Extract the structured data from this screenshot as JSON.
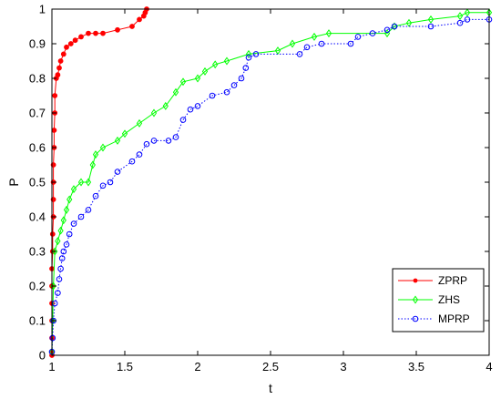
{
  "chart_data": {
    "type": "line",
    "xlabel": "t",
    "ylabel": "P",
    "xlim": [
      1,
      4
    ],
    "ylim": [
      0,
      1
    ],
    "x_ticks": [
      "1",
      "1.5",
      "2",
      "2.5",
      "3",
      "3.5",
      "4"
    ],
    "y_ticks": [
      "0",
      "0.1",
      "0.2",
      "0.3",
      "0.4",
      "0.5",
      "0.6",
      "0.7",
      "0.8",
      "0.9",
      "1"
    ],
    "grid": false,
    "legend_position": "bottom-right",
    "series": [
      {
        "name": "ZPRP",
        "color": "#ff0000",
        "marker": "dot",
        "line_style": "solid",
        "points": [
          [
            1.0,
            0.0
          ],
          [
            1.0,
            0.01
          ],
          [
            1.0,
            0.05
          ],
          [
            1.0,
            0.1
          ],
          [
            1.0,
            0.15
          ],
          [
            1.0,
            0.2
          ],
          [
            1.0,
            0.25
          ],
          [
            1.005,
            0.3
          ],
          [
            1.005,
            0.35
          ],
          [
            1.01,
            0.4
          ],
          [
            1.01,
            0.45
          ],
          [
            1.01,
            0.5
          ],
          [
            1.01,
            0.55
          ],
          [
            1.015,
            0.6
          ],
          [
            1.015,
            0.65
          ],
          [
            1.02,
            0.7
          ],
          [
            1.02,
            0.75
          ],
          [
            1.03,
            0.8
          ],
          [
            1.04,
            0.81
          ],
          [
            1.05,
            0.83
          ],
          [
            1.06,
            0.85
          ],
          [
            1.08,
            0.87
          ],
          [
            1.1,
            0.89
          ],
          [
            1.13,
            0.9
          ],
          [
            1.16,
            0.91
          ],
          [
            1.2,
            0.92
          ],
          [
            1.25,
            0.93
          ],
          [
            1.3,
            0.93
          ],
          [
            1.35,
            0.93
          ],
          [
            1.45,
            0.94
          ],
          [
            1.55,
            0.95
          ],
          [
            1.6,
            0.97
          ],
          [
            1.63,
            0.98
          ],
          [
            1.64,
            0.99
          ],
          [
            1.65,
            1.0
          ]
        ]
      },
      {
        "name": "ZHS",
        "color": "#00ff00",
        "marker": "diamond",
        "line_style": "solid",
        "points": [
          [
            1.0,
            0.01
          ],
          [
            1.005,
            0.1
          ],
          [
            1.01,
            0.2
          ],
          [
            1.02,
            0.3
          ],
          [
            1.04,
            0.33
          ],
          [
            1.06,
            0.36
          ],
          [
            1.08,
            0.39
          ],
          [
            1.1,
            0.42
          ],
          [
            1.12,
            0.45
          ],
          [
            1.15,
            0.48
          ],
          [
            1.2,
            0.5
          ],
          [
            1.25,
            0.5
          ],
          [
            1.28,
            0.55
          ],
          [
            1.3,
            0.58
          ],
          [
            1.35,
            0.6
          ],
          [
            1.45,
            0.62
          ],
          [
            1.5,
            0.64
          ],
          [
            1.6,
            0.67
          ],
          [
            1.7,
            0.7
          ],
          [
            1.78,
            0.72
          ],
          [
            1.85,
            0.76
          ],
          [
            1.9,
            0.79
          ],
          [
            2.0,
            0.8
          ],
          [
            2.05,
            0.82
          ],
          [
            2.12,
            0.84
          ],
          [
            2.2,
            0.85
          ],
          [
            2.35,
            0.87
          ],
          [
            2.55,
            0.88
          ],
          [
            2.65,
            0.9
          ],
          [
            2.8,
            0.92
          ],
          [
            2.9,
            0.93
          ],
          [
            3.3,
            0.93
          ],
          [
            3.35,
            0.95
          ],
          [
            3.45,
            0.96
          ],
          [
            3.6,
            0.97
          ],
          [
            3.8,
            0.98
          ],
          [
            3.85,
            0.99
          ],
          [
            4.0,
            0.99
          ]
        ]
      },
      {
        "name": "MPRP",
        "color": "#0000ff",
        "marker": "circle",
        "line_style": "dotted",
        "points": [
          [
            1.0,
            0.01
          ],
          [
            1.005,
            0.05
          ],
          [
            1.01,
            0.1
          ],
          [
            1.02,
            0.15
          ],
          [
            1.04,
            0.18
          ],
          [
            1.05,
            0.22
          ],
          [
            1.06,
            0.25
          ],
          [
            1.07,
            0.28
          ],
          [
            1.08,
            0.3
          ],
          [
            1.1,
            0.32
          ],
          [
            1.12,
            0.35
          ],
          [
            1.15,
            0.38
          ],
          [
            1.2,
            0.4
          ],
          [
            1.25,
            0.42
          ],
          [
            1.3,
            0.46
          ],
          [
            1.35,
            0.49
          ],
          [
            1.4,
            0.5
          ],
          [
            1.45,
            0.53
          ],
          [
            1.55,
            0.56
          ],
          [
            1.6,
            0.58
          ],
          [
            1.65,
            0.61
          ],
          [
            1.7,
            0.62
          ],
          [
            1.8,
            0.62
          ],
          [
            1.85,
            0.63
          ],
          [
            1.9,
            0.68
          ],
          [
            1.95,
            0.71
          ],
          [
            2.0,
            0.72
          ],
          [
            2.1,
            0.75
          ],
          [
            2.2,
            0.76
          ],
          [
            2.25,
            0.78
          ],
          [
            2.3,
            0.8
          ],
          [
            2.33,
            0.83
          ],
          [
            2.35,
            0.86
          ],
          [
            2.4,
            0.87
          ],
          [
            2.7,
            0.87
          ],
          [
            2.75,
            0.89
          ],
          [
            2.85,
            0.9
          ],
          [
            3.05,
            0.9
          ],
          [
            3.1,
            0.92
          ],
          [
            3.2,
            0.93
          ],
          [
            3.3,
            0.94
          ],
          [
            3.35,
            0.95
          ],
          [
            3.6,
            0.95
          ],
          [
            3.8,
            0.96
          ],
          [
            3.85,
            0.97
          ],
          [
            4.0,
            0.97
          ]
        ]
      }
    ]
  }
}
